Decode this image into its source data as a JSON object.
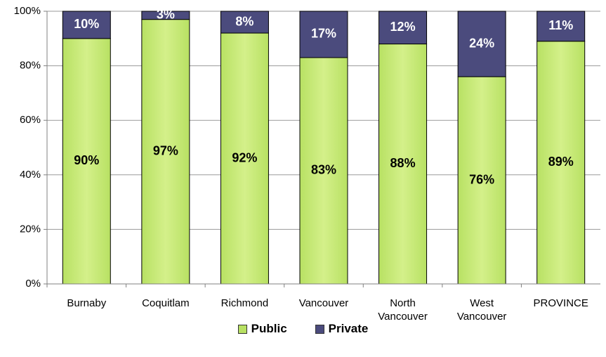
{
  "chart_data": {
    "type": "stacked_bar",
    "categories": [
      "Burnaby",
      "Coquitlam",
      "Richmond",
      "Vancouver",
      "North Vancouver",
      "West Vancouver",
      "PROVINCE"
    ],
    "series": [
      {
        "name": "Public",
        "color": "#b8e163",
        "values": [
          90,
          97,
          92,
          83,
          88,
          76,
          89
        ],
        "value_labels": [
          "90%",
          "97%",
          "92%",
          "83%",
          "88%",
          "76%",
          "89%"
        ]
      },
      {
        "name": "Private",
        "color": "#4b4b7d",
        "values": [
          10,
          3,
          8,
          17,
          12,
          24,
          11
        ],
        "value_labels": [
          "10%",
          "3%",
          "8%",
          "17%",
          "12%",
          "24%",
          "11%"
        ]
      }
    ],
    "ylim": [
      0,
      100
    ],
    "yticks": [
      {
        "value": 0,
        "label": "0%"
      },
      {
        "value": 20,
        "label": "20%"
      },
      {
        "value": 40,
        "label": "40%"
      },
      {
        "value": 60,
        "label": "60%"
      },
      {
        "value": 80,
        "label": "80%"
      },
      {
        "value": 100,
        "label": "100%"
      }
    ],
    "grid": true,
    "legend": "bottom"
  }
}
